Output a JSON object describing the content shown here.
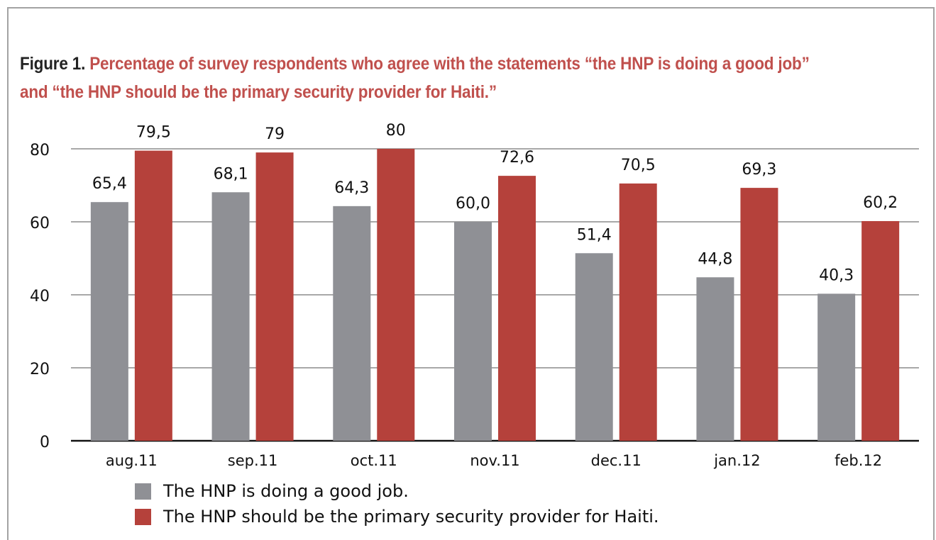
{
  "figure": {
    "prefix": "Figure 1.",
    "title": "Percentage of survey respondents who agree with the statements “the HNP is doing a good job” and “the HNP should be the primary security provider for Haiti.”"
  },
  "chart_data": {
    "type": "bar",
    "categories": [
      "aug.11",
      "sep.11",
      "oct.11",
      "nov.11",
      "dec.11",
      "jan.12",
      "feb.12"
    ],
    "series": [
      {
        "name": "The HNP is doing a good job.",
        "color": "#8f9095",
        "values": [
          65.4,
          68.1,
          64.3,
          60.0,
          51.4,
          44.8,
          40.3
        ],
        "labels": [
          "65,4",
          "68,1",
          "64,3",
          "60,0",
          "51,4",
          "44,8",
          "40,3"
        ]
      },
      {
        "name": "The HNP should be the primary security provider for Haiti.",
        "color": "#b5413b",
        "values": [
          79.5,
          79,
          80,
          72.6,
          70.5,
          69.3,
          60.2
        ],
        "labels": [
          "79,5",
          "79",
          "80",
          "72,6",
          "70,5",
          "69,3",
          "60,2"
        ]
      }
    ],
    "yticks": [
      "0",
      "20",
      "40",
      "60",
      "80"
    ],
    "ylim": [
      0,
      80
    ],
    "grid": true,
    "legend_position": "bottom-left"
  }
}
